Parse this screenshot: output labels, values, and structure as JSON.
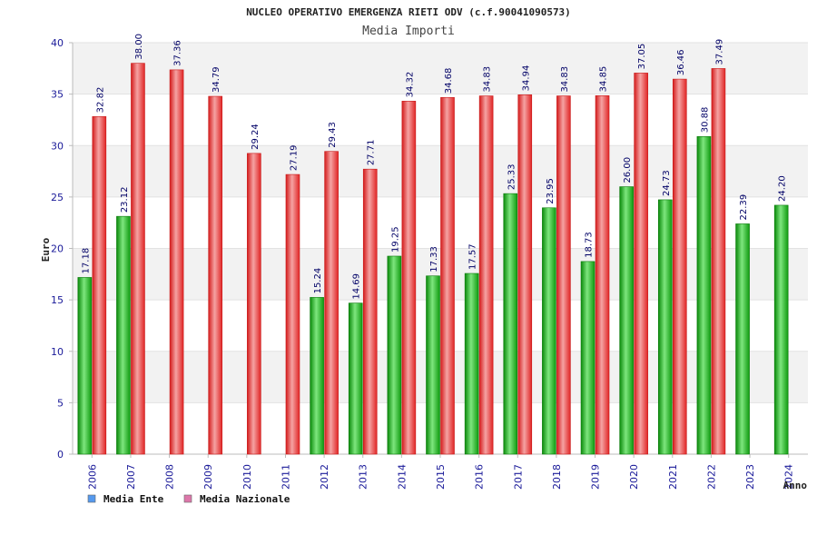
{
  "chart_data": {
    "type": "bar",
    "title": "NUCLEO OPERATIVO EMERGENZA RIETI ODV (c.f.90041090573)",
    "subtitle": "Media Importi",
    "xlabel": "Anno",
    "ylabel": "Euro",
    "ylim": [
      0,
      40
    ],
    "yticks": [
      "0",
      "5",
      "10",
      "15",
      "20",
      "25",
      "30",
      "35",
      "40"
    ],
    "grid": true,
    "legend_position": "bottom-left",
    "categories": [
      "2006",
      "2007",
      "2008",
      "2009",
      "2010",
      "2011",
      "2012",
      "2013",
      "2014",
      "2015",
      "2016",
      "2017",
      "2018",
      "2019",
      "2020",
      "2021",
      "2022",
      "2023",
      "2024"
    ],
    "series": [
      {
        "name": "Media Ente",
        "color": "#22bb22",
        "legend_color": "#5599ee",
        "values": [
          17.18,
          23.12,
          null,
          null,
          null,
          null,
          15.24,
          14.69,
          19.25,
          17.33,
          17.57,
          25.33,
          23.95,
          18.73,
          26.0,
          24.73,
          30.88,
          22.39,
          24.2
        ],
        "labels": [
          "17.18",
          "23.12",
          null,
          null,
          null,
          null,
          "15.24",
          "14.69",
          "19.25",
          "17.33",
          "17.57",
          "25.33",
          "23.95",
          "18.73",
          "26.00",
          "24.73",
          "30.88",
          "22.39",
          "24.20"
        ]
      },
      {
        "name": "Media Nazionale",
        "color": "#ee2222",
        "legend_color": "#dd77aa",
        "values": [
          32.82,
          38.0,
          37.36,
          34.79,
          29.24,
          27.19,
          29.43,
          27.71,
          34.32,
          34.68,
          34.83,
          34.94,
          34.83,
          34.85,
          37.05,
          36.46,
          37.49,
          null,
          null
        ],
        "labels": [
          "32.82",
          "38.00",
          "37.36",
          "34.79",
          "29.24",
          "27.19",
          "29.43",
          "27.71",
          "34.32",
          "34.68",
          "34.83",
          "34.94",
          "34.83",
          "34.85",
          "37.05",
          "36.46",
          "37.49",
          null,
          null
        ]
      }
    ]
  }
}
